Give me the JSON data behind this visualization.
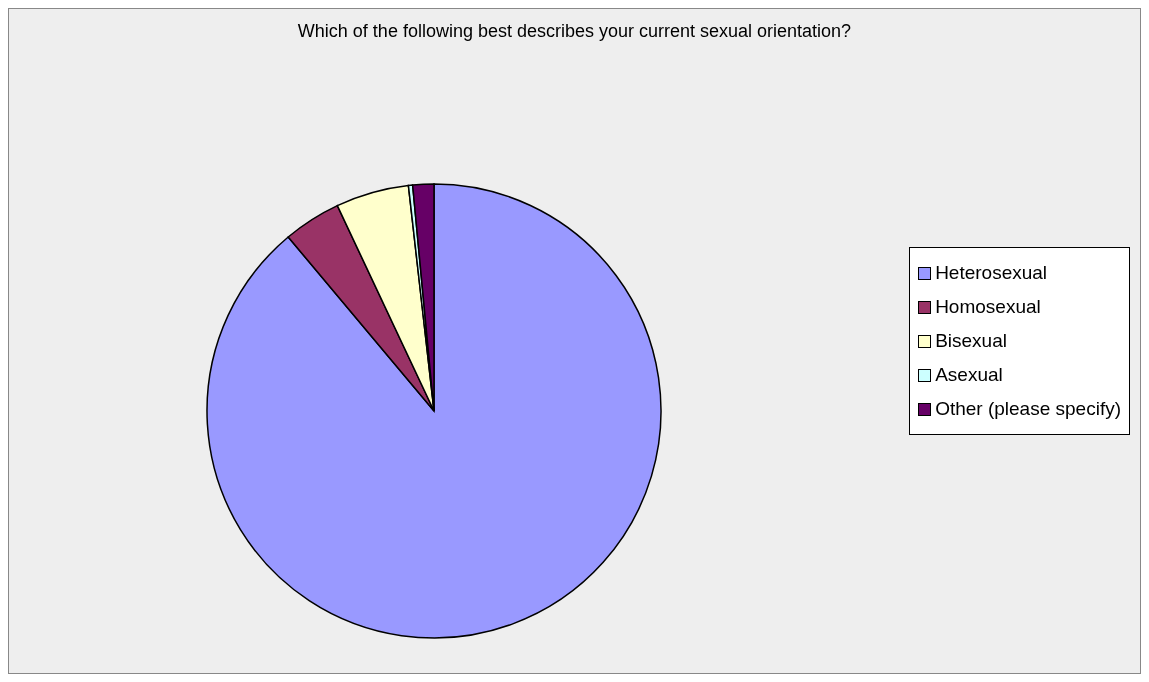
{
  "chart_data": {
    "type": "pie",
    "title": "Which of the following best describes your current sexual orientation?",
    "categories": [
      "Heterosexual",
      "Homosexual",
      "Bisexual",
      "Asexual",
      "Other (please specify)"
    ],
    "values": [
      88.9,
      4.1,
      5.2,
      0.3,
      1.5
    ],
    "colors": [
      "#9999ff",
      "#993366",
      "#ffffcc",
      "#ccffff",
      "#660066"
    ],
    "legend": "right"
  }
}
